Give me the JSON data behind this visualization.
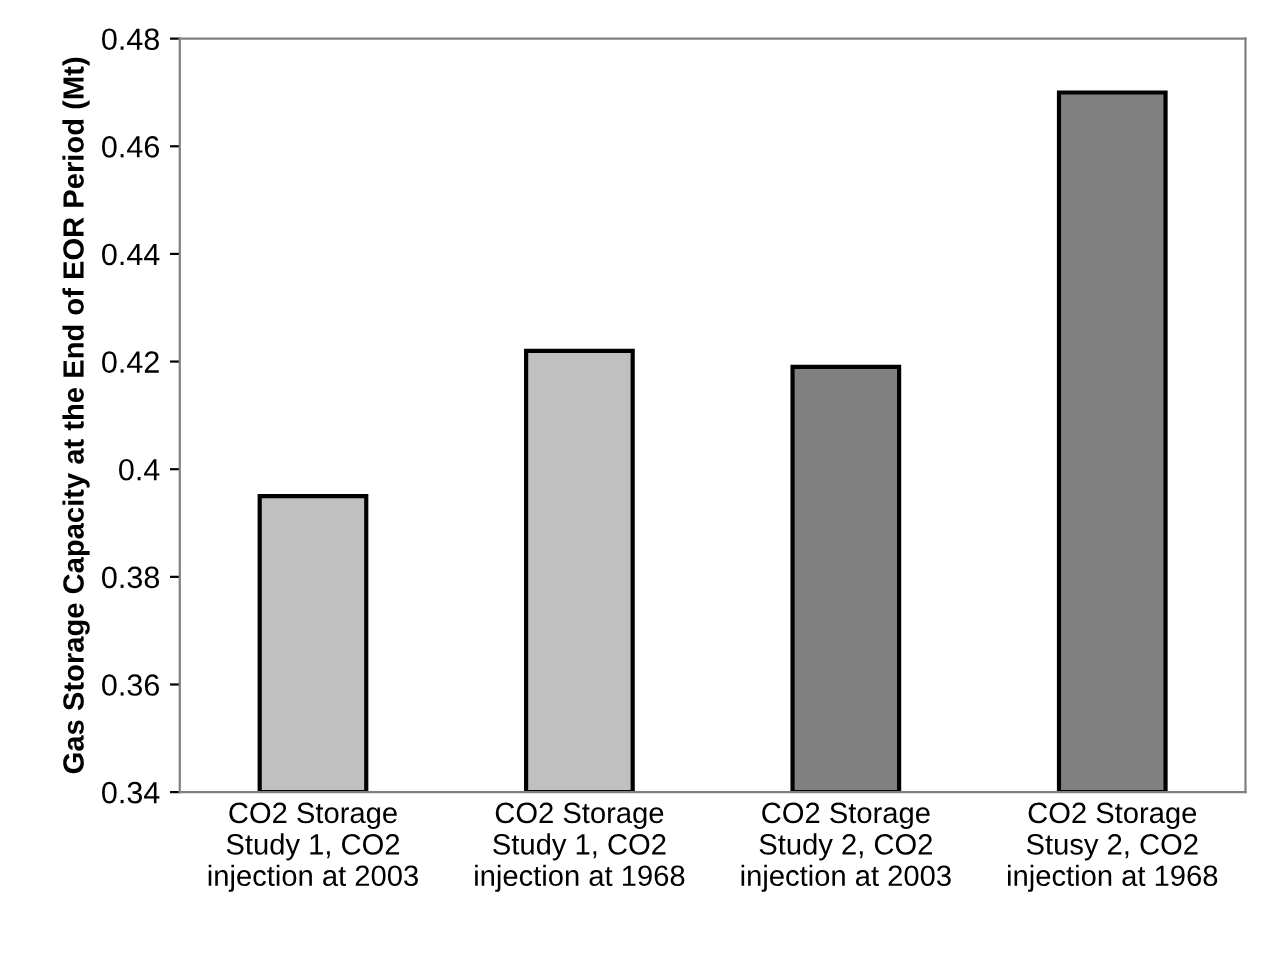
{
  "chart_data": {
    "type": "bar",
    "ylabel": "Gas Storage Capacity at the End of EOR Period (Mt)",
    "categories": [
      "CO2 Storage\nStudy 1, CO2\ninjection at 2003",
      "CO2 Storage\nStudy 1, CO2\ninjection at 1968",
      "CO2 Storage\nStudy 2, CO2\ninjection at 2003",
      "CO2 Storage\nStusy 2, CO2\ninjection at 1968"
    ],
    "values": [
      0.395,
      0.422,
      0.419,
      0.47
    ],
    "colors": [
      "#c0c0c0",
      "#c0c0c0",
      "#808080",
      "#808080"
    ],
    "ylim": [
      0.34,
      0.48
    ],
    "yticks": [
      0.34,
      0.36,
      0.38,
      0.4,
      0.42,
      0.44,
      0.46,
      0.48
    ],
    "grid": false
  }
}
